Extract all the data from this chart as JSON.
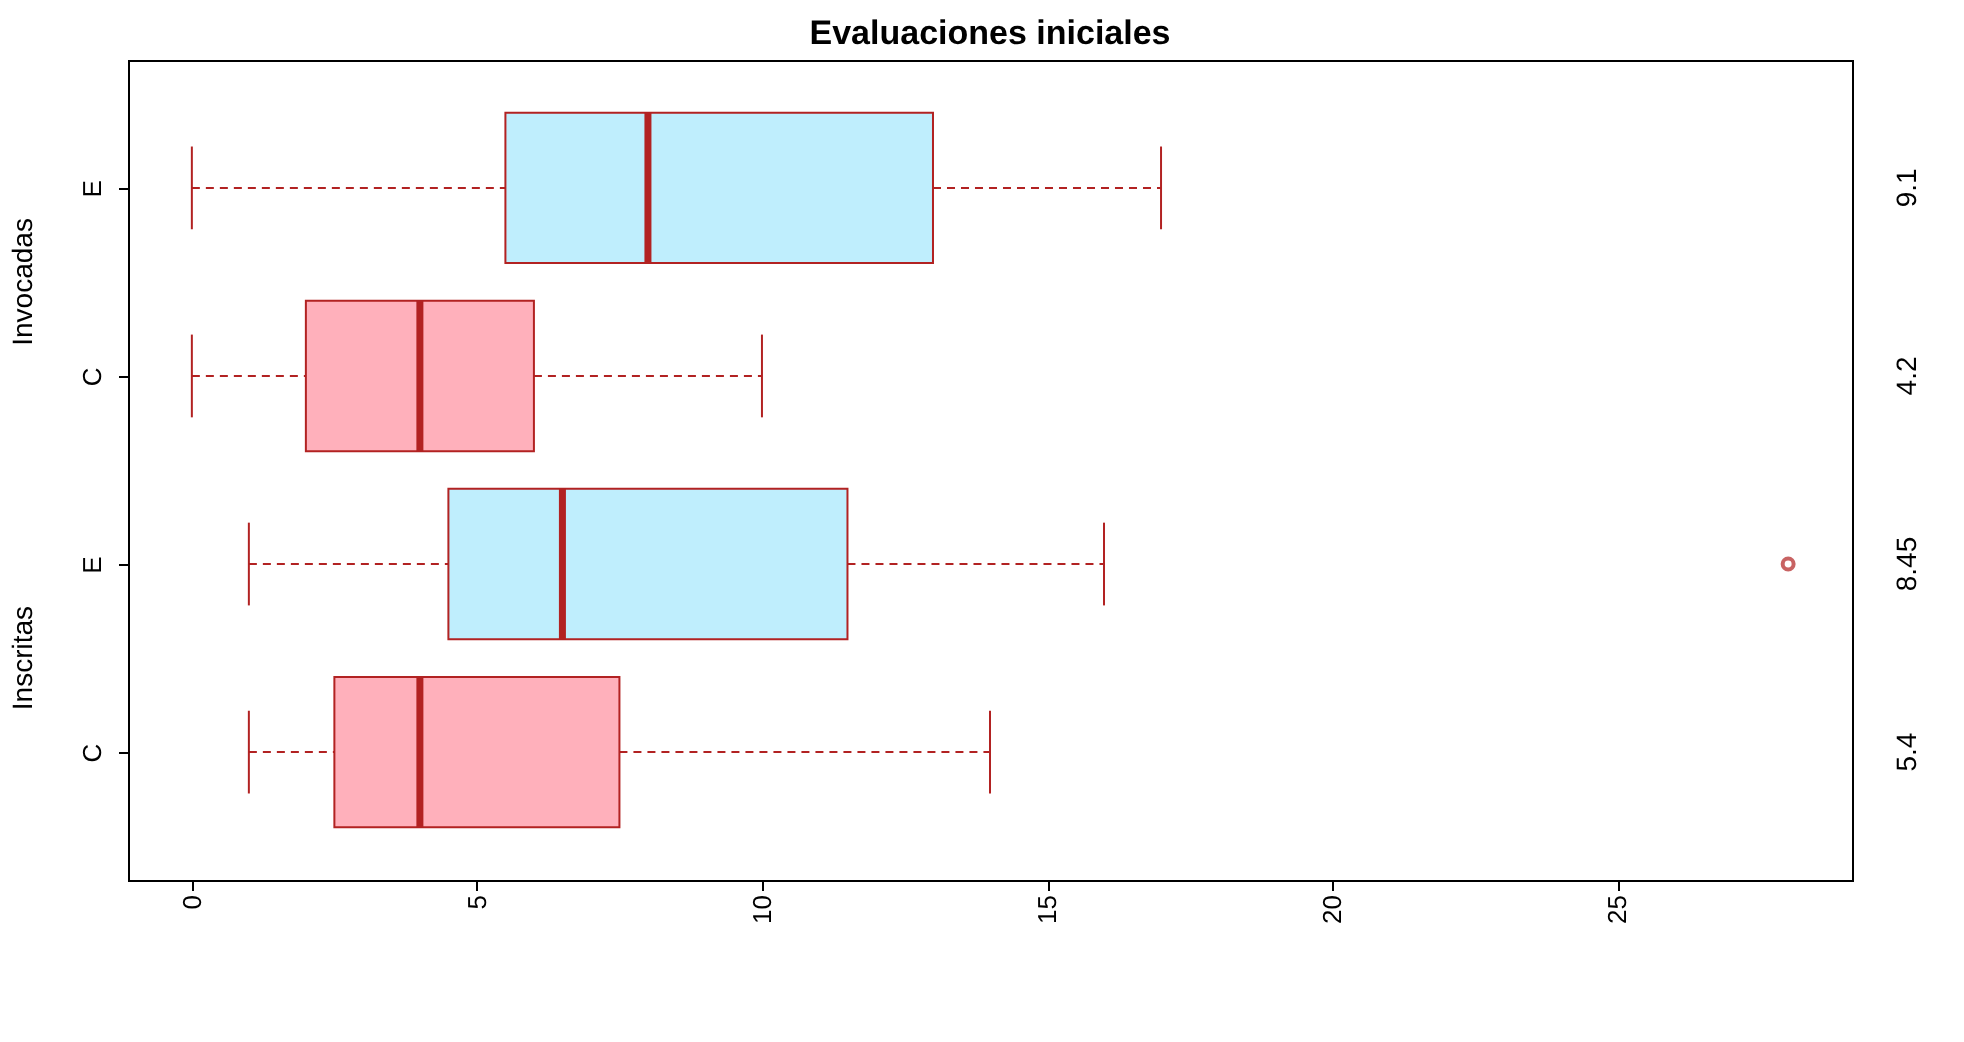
{
  "chart_data": {
    "type": "box",
    "orientation": "horizontal",
    "title": "Evaluaciones iniciales",
    "categories": [
      "E",
      "C",
      "E",
      "C"
    ],
    "boxes": [
      {
        "low": 0,
        "q1": 5.5,
        "median": 8,
        "q3": 13,
        "high": 17
      },
      {
        "low": 0,
        "q1": 2,
        "median": 4,
        "q3": 6,
        "high": 10
      },
      {
        "low": 1,
        "q1": 4.5,
        "median": 6.5,
        "q3": 11.5,
        "high": 16,
        "outliers": [
          28
        ]
      },
      {
        "low": 1,
        "q1": 2.5,
        "median": 4,
        "q3": 7.5,
        "high": 14
      }
    ],
    "colors": [
      "#bfeefd",
      "#ffb0bb",
      "#bfeefd",
      "#ffb0bb"
    ],
    "xlim": [
      -1.12,
      29.12
    ],
    "xticks": [
      0,
      5,
      10,
      15,
      20,
      25
    ],
    "annotations": [
      "Invocadas",
      "Inscritas",
      "9.1",
      "4.2",
      "8.45",
      "5.4"
    ]
  }
}
